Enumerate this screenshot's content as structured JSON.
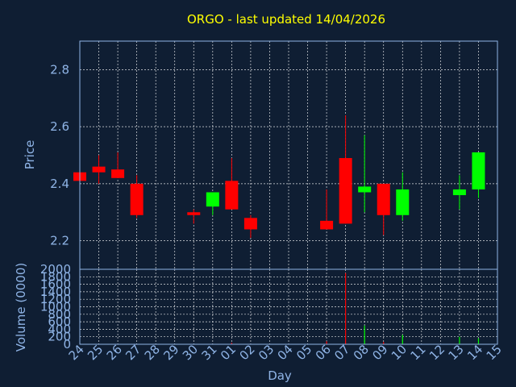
{
  "chart_data": {
    "type": "candlestick",
    "title": "ORGO - last updated 14/04/2026",
    "xlabel": "Day",
    "colors": {
      "background": "#0f1e33",
      "up": "#00ff00",
      "down": "#ff0000",
      "grid": "#ffffff",
      "axis_text": "#8fb4e6",
      "title": "#ffff00"
    },
    "price_panel": {
      "ylabel": "Price",
      "ylim": [
        2.1,
        2.9
      ],
      "yticks": [
        "2.2",
        "2.4",
        "2.6",
        "2.8"
      ],
      "ytick_values": [
        2.2,
        2.4,
        2.6,
        2.8
      ]
    },
    "volume_panel": {
      "ylabel": "Volume (0000)",
      "ylim": [
        0,
        2000
      ],
      "yticks": [
        "0",
        "200",
        "400",
        "600",
        "800",
        "1000",
        "1200",
        "1400",
        "1600",
        "1800",
        "2000"
      ],
      "ytick_values": [
        0,
        200,
        400,
        600,
        800,
        1000,
        1200,
        1400,
        1600,
        1800,
        2000
      ]
    },
    "x_ticks": [
      "24",
      "25",
      "26",
      "27",
      "28",
      "29",
      "30",
      "31",
      "01",
      "02",
      "03",
      "04",
      "05",
      "06",
      "07",
      "08",
      "09",
      "10",
      "11",
      "12",
      "13",
      "14",
      "15"
    ],
    "candles": [
      {
        "day": "24",
        "open": 2.44,
        "high": 2.44,
        "low": 2.41,
        "close": 2.41,
        "volume": 0
      },
      {
        "day": "25",
        "open": 2.46,
        "high": 2.5,
        "low": 2.4,
        "close": 2.44,
        "volume": 0
      },
      {
        "day": "26",
        "open": 2.45,
        "high": 2.51,
        "low": 2.42,
        "close": 2.42,
        "volume": 0
      },
      {
        "day": "27",
        "open": 2.4,
        "high": 2.43,
        "low": 2.28,
        "close": 2.29,
        "volume": 0
      },
      {
        "day": "30",
        "open": 2.3,
        "high": 2.31,
        "low": 2.26,
        "close": 2.29,
        "volume": 0
      },
      {
        "day": "31",
        "open": 2.32,
        "high": 2.37,
        "low": 2.29,
        "close": 2.37,
        "volume": 0
      },
      {
        "day": "01",
        "open": 2.41,
        "high": 2.49,
        "low": 2.31,
        "close": 2.31,
        "volume": 40
      },
      {
        "day": "02",
        "open": 2.28,
        "high": 2.29,
        "low": 2.21,
        "close": 2.24,
        "volume": 0
      },
      {
        "day": "06",
        "open": 2.27,
        "high": 2.38,
        "low": 2.24,
        "close": 2.24,
        "volume": 80
      },
      {
        "day": "07",
        "open": 2.49,
        "high": 2.64,
        "low": 2.26,
        "close": 2.26,
        "volume": 1900
      },
      {
        "day": "08",
        "open": 2.37,
        "high": 2.57,
        "low": 2.3,
        "close": 2.39,
        "volume": 500
      },
      {
        "day": "09",
        "open": 2.4,
        "high": 2.4,
        "low": 2.22,
        "close": 2.29,
        "volume": 60
      },
      {
        "day": "10",
        "open": 2.29,
        "high": 2.44,
        "low": 2.27,
        "close": 2.38,
        "volume": 250
      },
      {
        "day": "13",
        "open": 2.36,
        "high": 2.43,
        "low": 2.31,
        "close": 2.38,
        "volume": 200
      },
      {
        "day": "14",
        "open": 2.38,
        "high": 2.51,
        "low": 2.35,
        "close": 2.51,
        "volume": 160
      }
    ]
  }
}
